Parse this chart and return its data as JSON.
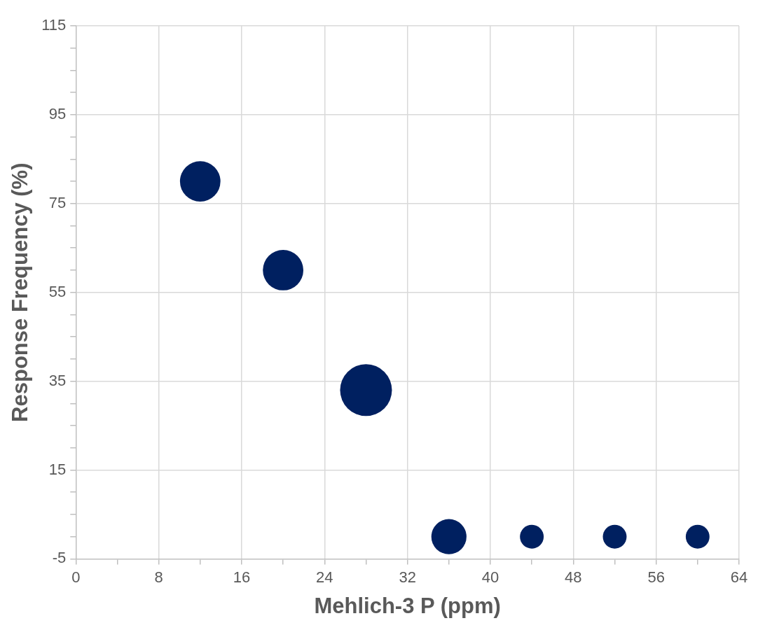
{
  "chart_data": {
    "type": "bubble",
    "xlabel": "Mehlich-3 P (ppm)",
    "ylabel": "Response Frequency (%)",
    "x": [
      12,
      20,
      28,
      36,
      44,
      52,
      60
    ],
    "values": [
      80,
      60,
      33,
      0,
      0,
      0,
      0
    ],
    "sizes": [
      0.61,
      0.61,
      1,
      0.46,
      0.21,
      0.21,
      0.21
    ],
    "color": "#002060",
    "xlim": [
      0,
      64
    ],
    "xticks": [
      0,
      {
        "value": 4,
        "label": null
      },
      8,
      {
        "value": 12,
        "label": null
      },
      16,
      {
        "value": 20,
        "label": null
      },
      24,
      {
        "value": 28,
        "label": null
      },
      32,
      {
        "value": 36,
        "label": null
      },
      40,
      {
        "value": 44,
        "label": null
      },
      48,
      {
        "value": 52,
        "label": null
      },
      56,
      {
        "value": 60,
        "label": null
      },
      64
    ],
    "ylim": [
      -5,
      115
    ],
    "yticks": [
      -5,
      {
        "value": 0,
        "label": null
      },
      {
        "value": 5,
        "label": null
      },
      {
        "value": 10,
        "label": null
      },
      15,
      {
        "value": 20,
        "label": null
      },
      {
        "value": 25,
        "label": null
      },
      {
        "value": 30,
        "label": null
      },
      35,
      {
        "value": 40,
        "label": null
      },
      {
        "value": 45,
        "label": null
      },
      {
        "value": 50,
        "label": null
      },
      55,
      {
        "value": 60,
        "label": null
      },
      {
        "value": 65,
        "label": null
      },
      {
        "value": 70,
        "label": null
      },
      75,
      {
        "value": 80,
        "label": null
      },
      {
        "value": 85,
        "label": null
      },
      {
        "value": 90,
        "label": null
      },
      95,
      {
        "value": 100,
        "label": null
      },
      {
        "value": 105,
        "label": null
      },
      {
        "value": 110,
        "label": null
      },
      115
    ],
    "grid": true,
    "legend": false
  }
}
